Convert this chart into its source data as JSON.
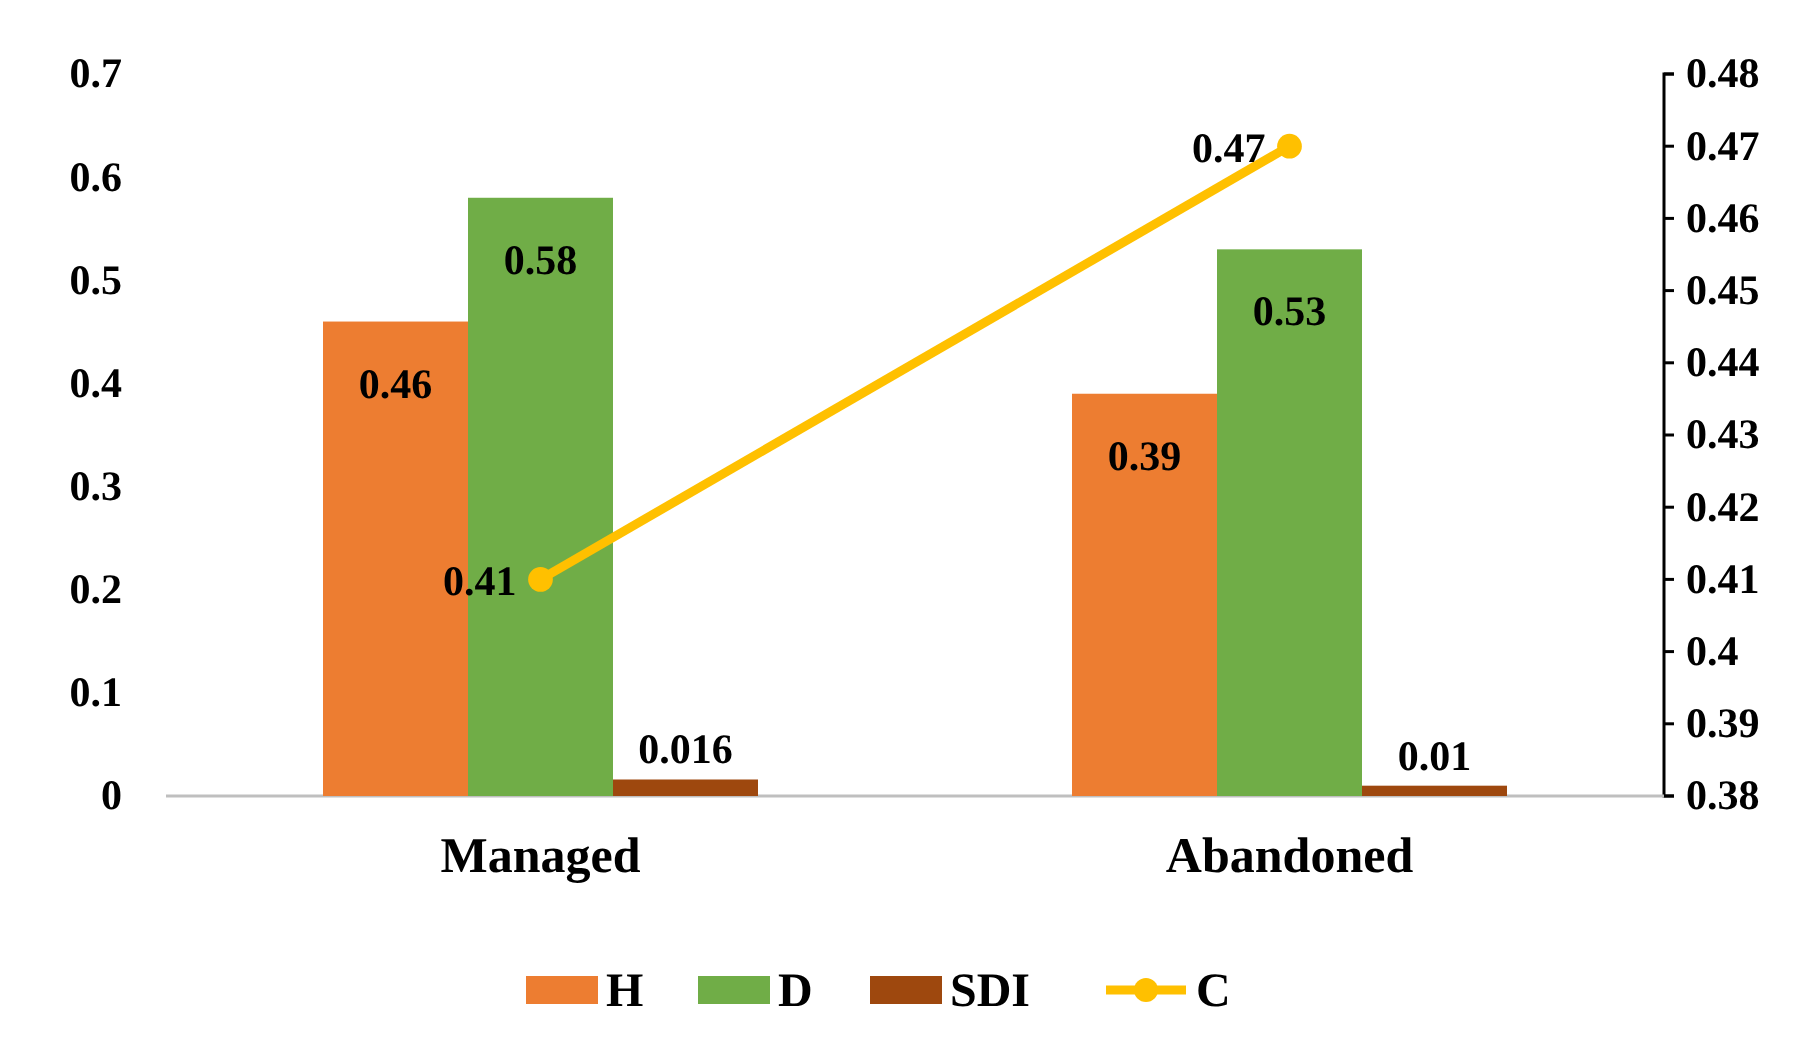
{
  "chart_data": {
    "type": "bar",
    "categories": [
      "Managed",
      "Abandoned"
    ],
    "series": [
      {
        "name": "H",
        "color": "#ed7d31",
        "values": [
          0.46,
          0.39
        ]
      },
      {
        "name": "D",
        "color": "#70ad47",
        "values": [
          0.58,
          0.53
        ]
      },
      {
        "name": "SDI",
        "color": "#9e480e",
        "values": [
          0.016,
          0.01
        ]
      },
      {
        "name": "C",
        "type": "line",
        "axis": "y2",
        "color": "#ffc000",
        "values": [
          0.41,
          0.47
        ],
        "marker": "circle"
      }
    ],
    "ylim": [
      0,
      0.7
    ],
    "yticks": [
      0,
      0.1,
      0.2,
      0.3,
      0.4,
      0.5,
      0.6,
      0.7
    ],
    "y2lim": [
      0.38,
      0.48
    ],
    "y2ticks": [
      0.38,
      0.39,
      0.4,
      0.41,
      0.42,
      0.43,
      0.44,
      0.45,
      0.46,
      0.47,
      0.48
    ],
    "data_labels": true,
    "legend": "bottom",
    "grid": false
  }
}
